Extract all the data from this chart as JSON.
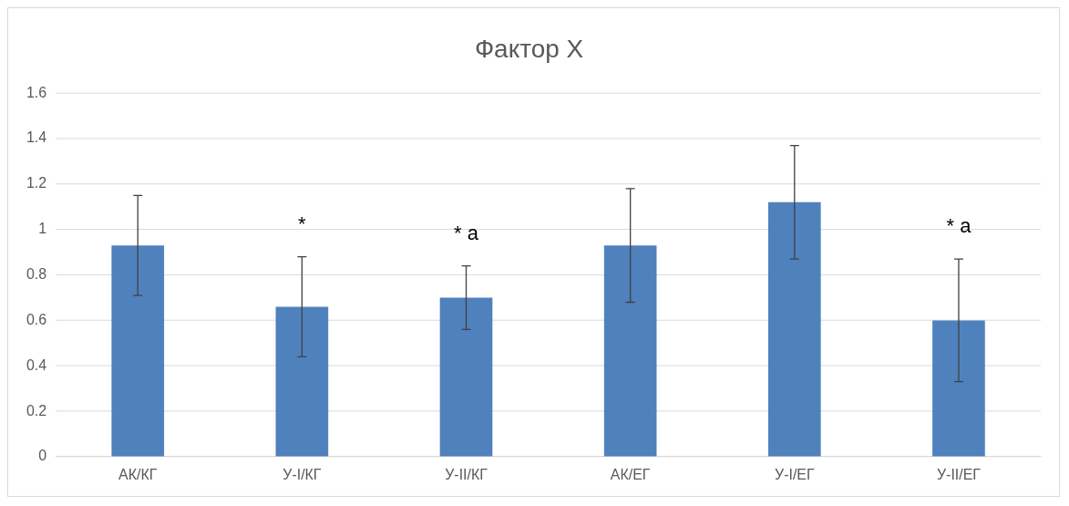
{
  "chart_data": {
    "type": "bar",
    "title": "Фактор X",
    "categories": [
      "АК/КГ",
      "У-I/КГ",
      "У-II/КГ",
      "АК/ЕГ",
      "У-I/ЕГ",
      "У-II/ЕГ"
    ],
    "values": [
      0.93,
      0.66,
      0.7,
      0.93,
      1.12,
      0.6
    ],
    "errors": [
      0.22,
      0.22,
      0.14,
      0.25,
      0.25,
      0.27
    ],
    "color": "#4f81bd",
    "ylim": [
      0,
      1.6
    ],
    "yticks": [
      0,
      0.2,
      0.4,
      0.6,
      0.8,
      1,
      1.2,
      1.4,
      1.6
    ],
    "grid": "y",
    "legend": false,
    "annotations": [
      {
        "text": "*",
        "x": "У-I/КГ",
        "y": 0.88
      },
      {
        "text": "* a",
        "x": "У-II/КГ",
        "y": 0.84
      },
      {
        "text": "* a",
        "x": "У-II/ЕГ",
        "y": 0.87
      }
    ]
  }
}
